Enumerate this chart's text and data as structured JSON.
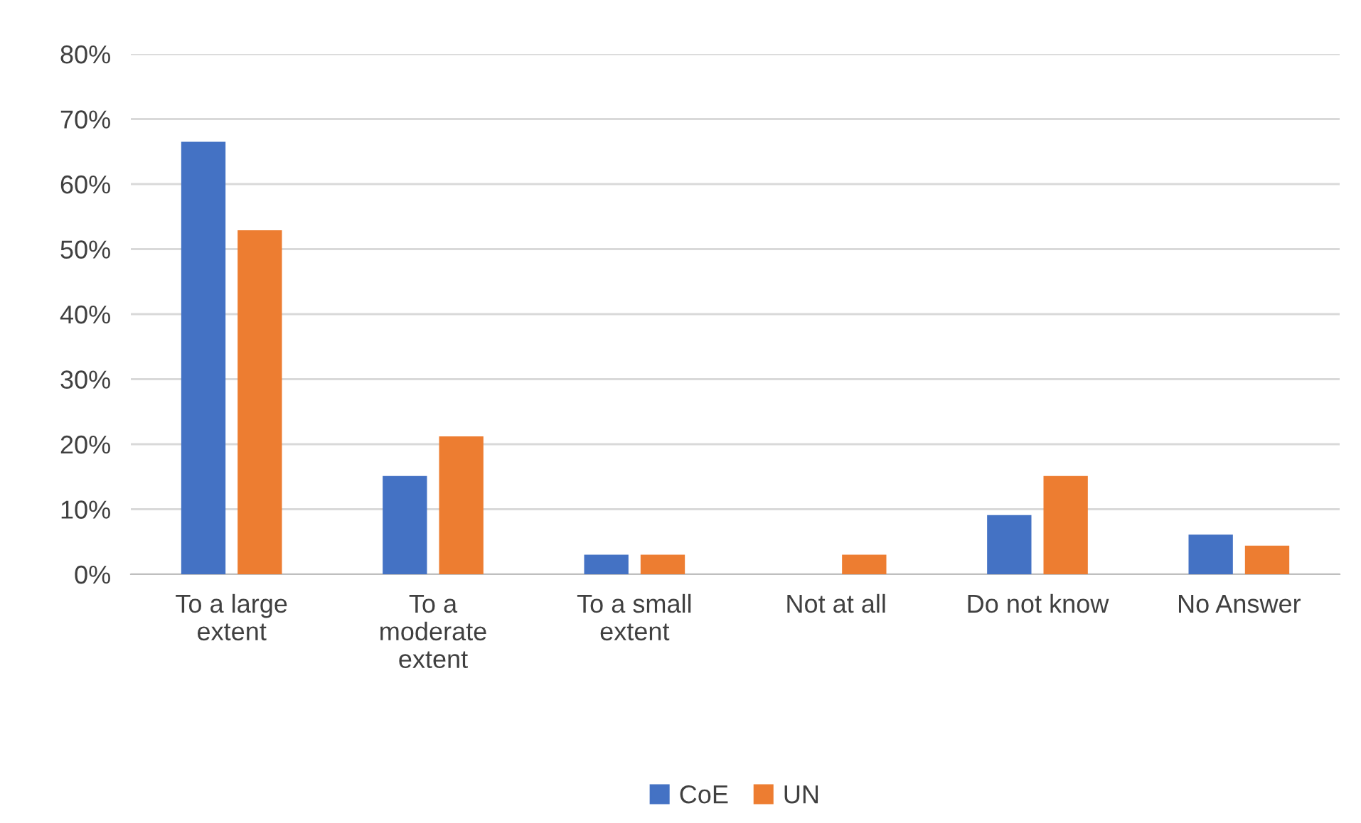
{
  "chart_data": {
    "type": "bar",
    "categories": [
      "To a large\nextent",
      "To a\nmoderate\nextent",
      "To a small\nextent",
      "Not at all",
      "Do not know",
      "No Answer"
    ],
    "series": [
      {
        "name": "CoE",
        "color": "#4472c4",
        "values": [
          66.5,
          15.1,
          3.0,
          null,
          9.1,
          6.1
        ]
      },
      {
        "name": "UN",
        "color": "#ed7d31",
        "values": [
          52.9,
          21.2,
          3.0,
          3.0,
          15.1,
          4.4
        ]
      }
    ],
    "ylim": [
      0,
      80
    ],
    "yticks": [
      {
        "value": 0,
        "label": "0%"
      },
      {
        "value": 10,
        "label": "10%"
      },
      {
        "value": 20,
        "label": "20%"
      },
      {
        "value": 30,
        "label": "30%"
      },
      {
        "value": 40,
        "label": "40%"
      },
      {
        "value": 50,
        "label": "50%"
      },
      {
        "value": 60,
        "label": "60%"
      },
      {
        "value": 70,
        "label": "70%"
      },
      {
        "value": 80,
        "label": "80%"
      }
    ],
    "grid": "y",
    "legend": "bottom"
  }
}
